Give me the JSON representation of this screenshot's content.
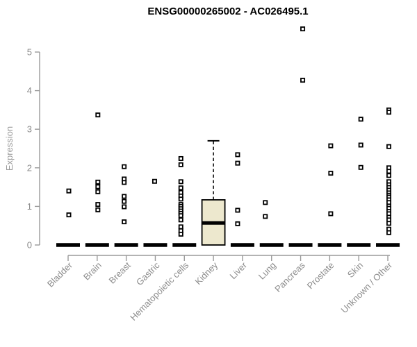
{
  "chart_data": {
    "type": "boxplot",
    "title": "ENSG00000265002 - AC026495.1",
    "ylabel": "Expression",
    "xlabel": "",
    "ylim": [
      0,
      5.8
    ],
    "yticks": [
      0,
      1,
      2,
      3,
      4,
      5
    ],
    "grid": false,
    "legend": "none",
    "categories": [
      "Bladder",
      "Brain",
      "Breast",
      "Gastric",
      "Hematopoietic cells",
      "Kidney",
      "Liver",
      "Lung",
      "Pancreas",
      "Prostate",
      "Skin",
      "Unknown / Other"
    ],
    "boxes": [
      {
        "category": "Bladder",
        "q1": 0,
        "median": 0,
        "q3": 0,
        "whisker_low": 0,
        "whisker_high": 0,
        "outliers": [
          1.4,
          0.78
        ]
      },
      {
        "category": "Brain",
        "q1": 0,
        "median": 0,
        "q3": 0,
        "whisker_low": 0,
        "whisker_high": 0,
        "outliers": [
          3.37,
          1.63,
          1.51,
          1.38,
          1.05,
          0.91
        ]
      },
      {
        "category": "Breast",
        "q1": 0,
        "median": 0,
        "q3": 0,
        "whisker_low": 0,
        "whisker_high": 0,
        "outliers": [
          2.03,
          1.71,
          1.62,
          1.26,
          1.13,
          0.99,
          0.6
        ]
      },
      {
        "category": "Gastric",
        "q1": 0,
        "median": 0,
        "q3": 0,
        "whisker_low": 0,
        "whisker_high": 0,
        "outliers": [
          1.65
        ]
      },
      {
        "category": "Hematopoietic cells",
        "q1": 0,
        "median": 0,
        "q3": 0,
        "whisker_low": 0,
        "whisker_high": 0,
        "outliers": [
          2.24,
          2.08,
          1.64,
          1.48,
          1.36,
          1.27,
          1.19,
          1.05,
          1.0,
          0.94,
          0.88,
          0.82,
          0.76,
          0.65,
          0.47,
          0.37,
          0.28
        ]
      },
      {
        "category": "Kidney",
        "q1": 0,
        "median": 0.57,
        "q3": 1.17,
        "whisker_low": 0,
        "whisker_high": 2.7,
        "outliers": []
      },
      {
        "category": "Liver",
        "q1": 0,
        "median": 0,
        "q3": 0,
        "whisker_low": 0,
        "whisker_high": 0,
        "outliers": [
          2.34,
          2.12,
          0.9,
          0.55
        ]
      },
      {
        "category": "Lung",
        "q1": 0,
        "median": 0,
        "q3": 0,
        "whisker_low": 0,
        "whisker_high": 0,
        "outliers": [
          1.1,
          0.74
        ]
      },
      {
        "category": "Pancreas",
        "q1": 0,
        "median": 0,
        "q3": 0,
        "whisker_low": 0,
        "whisker_high": 0,
        "outliers": [
          5.6,
          4.27
        ]
      },
      {
        "category": "Prostate",
        "q1": 0,
        "median": 0,
        "q3": 0,
        "whisker_low": 0,
        "whisker_high": 0,
        "outliers": [
          2.57,
          1.86,
          0.81
        ]
      },
      {
        "category": "Skin",
        "q1": 0,
        "median": 0,
        "q3": 0,
        "whisker_low": 0,
        "whisker_high": 0,
        "outliers": [
          3.26,
          2.59,
          2.01
        ]
      },
      {
        "category": "Unknown / Other",
        "q1": 0,
        "median": 0,
        "q3": 0,
        "whisker_low": 0,
        "whisker_high": 0,
        "outliers": [
          3.5,
          3.44,
          2.55,
          2.0,
          1.91,
          1.8,
          1.64,
          1.56,
          1.49,
          1.42,
          1.35,
          1.29,
          1.24,
          1.17,
          1.1,
          1.01,
          0.95,
          0.87,
          0.81,
          0.72,
          0.65,
          0.56,
          0.41,
          0.32
        ]
      }
    ],
    "colors": {
      "box_fill": "#EDE8CE",
      "box_line": "#000000",
      "point": "#000000",
      "point_fill": "#FFFFFF",
      "axis_line": "#9a9a9a",
      "tick_text": "#8c8c8c",
      "title_text": "#000000"
    }
  }
}
